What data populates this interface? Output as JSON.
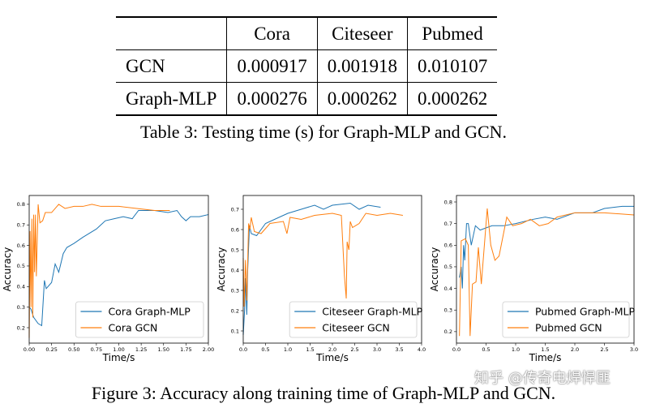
{
  "table": {
    "headers": [
      "",
      "Cora",
      "Citeseer",
      "Pubmed"
    ],
    "rows": [
      [
        "GCN",
        "0.000917",
        "0.001918",
        "0.010107"
      ],
      [
        "Graph-MLP",
        "0.000276",
        "0.000262",
        "0.000262"
      ]
    ],
    "caption": "Table 3: Testing time (s) for Graph-MLP and GCN."
  },
  "figure_caption": "Figure 3: Accuracy along training time of Graph-MLP and GCN.",
  "watermark": "知乎 @传奇电焊悍匪",
  "colors": {
    "graph_mlp": "#1f77b4",
    "gcn": "#ff7f0e"
  },
  "chart_data": [
    {
      "type": "line",
      "xlabel": "Time/s",
      "ylabel": "Accuracy",
      "xlim": [
        0,
        2
      ],
      "ylim": [
        0.125,
        0.843
      ],
      "xticks": [
        "0.00",
        "0.25",
        "0.50",
        "0.75",
        "1.00",
        "1.25",
        "1.50",
        "1.75",
        "2.00"
      ],
      "yticks": [
        "0.2",
        "0.3",
        "0.4",
        "0.5",
        "0.6",
        "0.7",
        "0.8"
      ],
      "legend": "bottom-right",
      "series": [
        {
          "name": "Cora Graph-MLP",
          "points": [
            [
              0,
              0.3
            ],
            [
              0.02,
              0.29
            ],
            [
              0.05,
              0.25
            ],
            [
              0.1,
              0.22
            ],
            [
              0.14,
              0.21
            ],
            [
              0.17,
              0.43
            ],
            [
              0.19,
              0.39
            ],
            [
              0.25,
              0.42
            ],
            [
              0.29,
              0.51
            ],
            [
              0.33,
              0.47
            ],
            [
              0.38,
              0.56
            ],
            [
              0.42,
              0.59
            ],
            [
              0.5,
              0.61
            ],
            [
              0.6,
              0.64
            ],
            [
              0.75,
              0.68
            ],
            [
              0.85,
              0.72
            ],
            [
              0.95,
              0.73
            ],
            [
              1.05,
              0.74
            ],
            [
              1.15,
              0.73
            ],
            [
              1.22,
              0.77
            ],
            [
              1.4,
              0.77
            ],
            [
              1.55,
              0.76
            ],
            [
              1.65,
              0.77
            ],
            [
              1.7,
              0.74
            ],
            [
              1.75,
              0.72
            ],
            [
              1.8,
              0.74
            ],
            [
              1.9,
              0.74
            ],
            [
              2.0,
              0.75
            ]
          ]
        },
        {
          "name": "Cora GCN",
          "points": [
            [
              0,
              0.15
            ],
            [
              0.01,
              0.67
            ],
            [
              0.02,
              0.3
            ],
            [
              0.03,
              0.73
            ],
            [
              0.04,
              0.25
            ],
            [
              0.05,
              0.75
            ],
            [
              0.06,
              0.47
            ],
            [
              0.07,
              0.75
            ],
            [
              0.08,
              0.45
            ],
            [
              0.1,
              0.8
            ],
            [
              0.12,
              0.71
            ],
            [
              0.15,
              0.72
            ],
            [
              0.18,
              0.76
            ],
            [
              0.25,
              0.76
            ],
            [
              0.33,
              0.8
            ],
            [
              0.4,
              0.78
            ],
            [
              0.5,
              0.79
            ],
            [
              0.6,
              0.79
            ],
            [
              0.7,
              0.8
            ],
            [
              0.8,
              0.79
            ],
            [
              1.0,
              0.79
            ],
            [
              1.2,
              0.78
            ],
            [
              1.4,
              0.77
            ],
            [
              1.57,
              0.77
            ]
          ]
        }
      ]
    },
    {
      "type": "line",
      "xlabel": "Time/s",
      "ylabel": "Accuracy",
      "xlim": [
        0,
        4
      ],
      "ylim": [
        0.04,
        0.768
      ],
      "xticks": [
        "0.0",
        "0.5",
        "1.0",
        "1.5",
        "2.0",
        "2.5",
        "3.0",
        "3.5",
        "4.0"
      ],
      "yticks": [
        "0.1",
        "0.2",
        "0.3",
        "0.4",
        "0.5",
        "0.6",
        "0.7"
      ],
      "legend": "bottom-right",
      "series": [
        {
          "name": "Citeseer Graph-MLP",
          "points": [
            [
              0,
              0.08
            ],
            [
              0.03,
              0.2
            ],
            [
              0.05,
              0.36
            ],
            [
              0.08,
              0.18
            ],
            [
              0.1,
              0.4
            ],
            [
              0.14,
              0.62
            ],
            [
              0.18,
              0.58
            ],
            [
              0.3,
              0.57
            ],
            [
              0.5,
              0.63
            ],
            [
              0.8,
              0.66
            ],
            [
              1.0,
              0.68
            ],
            [
              1.3,
              0.7
            ],
            [
              1.6,
              0.72
            ],
            [
              1.8,
              0.7
            ],
            [
              2.0,
              0.72
            ],
            [
              2.4,
              0.73
            ],
            [
              2.6,
              0.7
            ],
            [
              2.8,
              0.72
            ],
            [
              3.08,
              0.71
            ]
          ]
        },
        {
          "name": "Citeseer GCN",
          "points": [
            [
              0,
              0.46
            ],
            [
              0.02,
              0.22
            ],
            [
              0.05,
              0.45
            ],
            [
              0.08,
              0.25
            ],
            [
              0.12,
              0.63
            ],
            [
              0.15,
              0.6
            ],
            [
              0.18,
              0.66
            ],
            [
              0.25,
              0.59
            ],
            [
              0.4,
              0.58
            ],
            [
              0.6,
              0.63
            ],
            [
              0.9,
              0.64
            ],
            [
              0.98,
              0.58
            ],
            [
              1.05,
              0.66
            ],
            [
              1.3,
              0.65
            ],
            [
              1.6,
              0.67
            ],
            [
              2.0,
              0.68
            ],
            [
              2.2,
              0.67
            ],
            [
              2.27,
              0.37
            ],
            [
              2.31,
              0.26
            ],
            [
              2.33,
              0.54
            ],
            [
              2.37,
              0.5
            ],
            [
              2.4,
              0.64
            ],
            [
              2.45,
              0.61
            ],
            [
              2.6,
              0.63
            ],
            [
              2.75,
              0.68
            ],
            [
              3.0,
              0.67
            ],
            [
              3.3,
              0.68
            ],
            [
              3.58,
              0.67
            ]
          ]
        }
      ]
    },
    {
      "type": "line",
      "xlabel": "Time/s",
      "ylabel": "Accuracy",
      "xlim": [
        0,
        3
      ],
      "ylim": [
        0.147,
        0.83
      ],
      "xticks": [
        "0.0",
        "0.5",
        "1.0",
        "1.5",
        "2.0",
        "2.5",
        "3.0"
      ],
      "yticks": [
        "0.2",
        "0.3",
        "0.4",
        "0.5",
        "0.6",
        "0.7",
        "0.8"
      ],
      "legend": "bottom-right",
      "series": [
        {
          "name": "Pubmed Graph-MLP",
          "points": [
            [
              0.05,
              0.45
            ],
            [
              0.08,
              0.5
            ],
            [
              0.1,
              0.4
            ],
            [
              0.12,
              0.6
            ],
            [
              0.14,
              0.53
            ],
            [
              0.17,
              0.7
            ],
            [
              0.2,
              0.7
            ],
            [
              0.25,
              0.6
            ],
            [
              0.32,
              0.69
            ],
            [
              0.4,
              0.67
            ],
            [
              0.6,
              0.69
            ],
            [
              0.8,
              0.69
            ],
            [
              1.0,
              0.7
            ],
            [
              1.3,
              0.72
            ],
            [
              1.5,
              0.73
            ],
            [
              1.7,
              0.72
            ],
            [
              2.0,
              0.75
            ],
            [
              2.3,
              0.75
            ],
            [
              2.5,
              0.77
            ],
            [
              2.8,
              0.78
            ],
            [
              3.0,
              0.78
            ]
          ]
        },
        {
          "name": "Pubmed GCN",
          "points": [
            [
              0.05,
              0.18
            ],
            [
              0.08,
              0.62
            ],
            [
              0.15,
              0.63
            ],
            [
              0.2,
              0.6
            ],
            [
              0.23,
              0.18
            ],
            [
              0.27,
              0.42
            ],
            [
              0.33,
              0.43
            ],
            [
              0.37,
              0.59
            ],
            [
              0.42,
              0.42
            ],
            [
              0.52,
              0.77
            ],
            [
              0.58,
              0.6
            ],
            [
              0.65,
              0.53
            ],
            [
              0.72,
              0.55
            ],
            [
              0.85,
              0.73
            ],
            [
              0.95,
              0.69
            ],
            [
              1.1,
              0.7
            ],
            [
              1.25,
              0.72
            ],
            [
              1.4,
              0.69
            ],
            [
              1.55,
              0.7
            ],
            [
              1.7,
              0.73
            ],
            [
              2.0,
              0.75
            ],
            [
              2.5,
              0.75
            ],
            [
              3.0,
              0.74
            ]
          ]
        }
      ]
    }
  ]
}
